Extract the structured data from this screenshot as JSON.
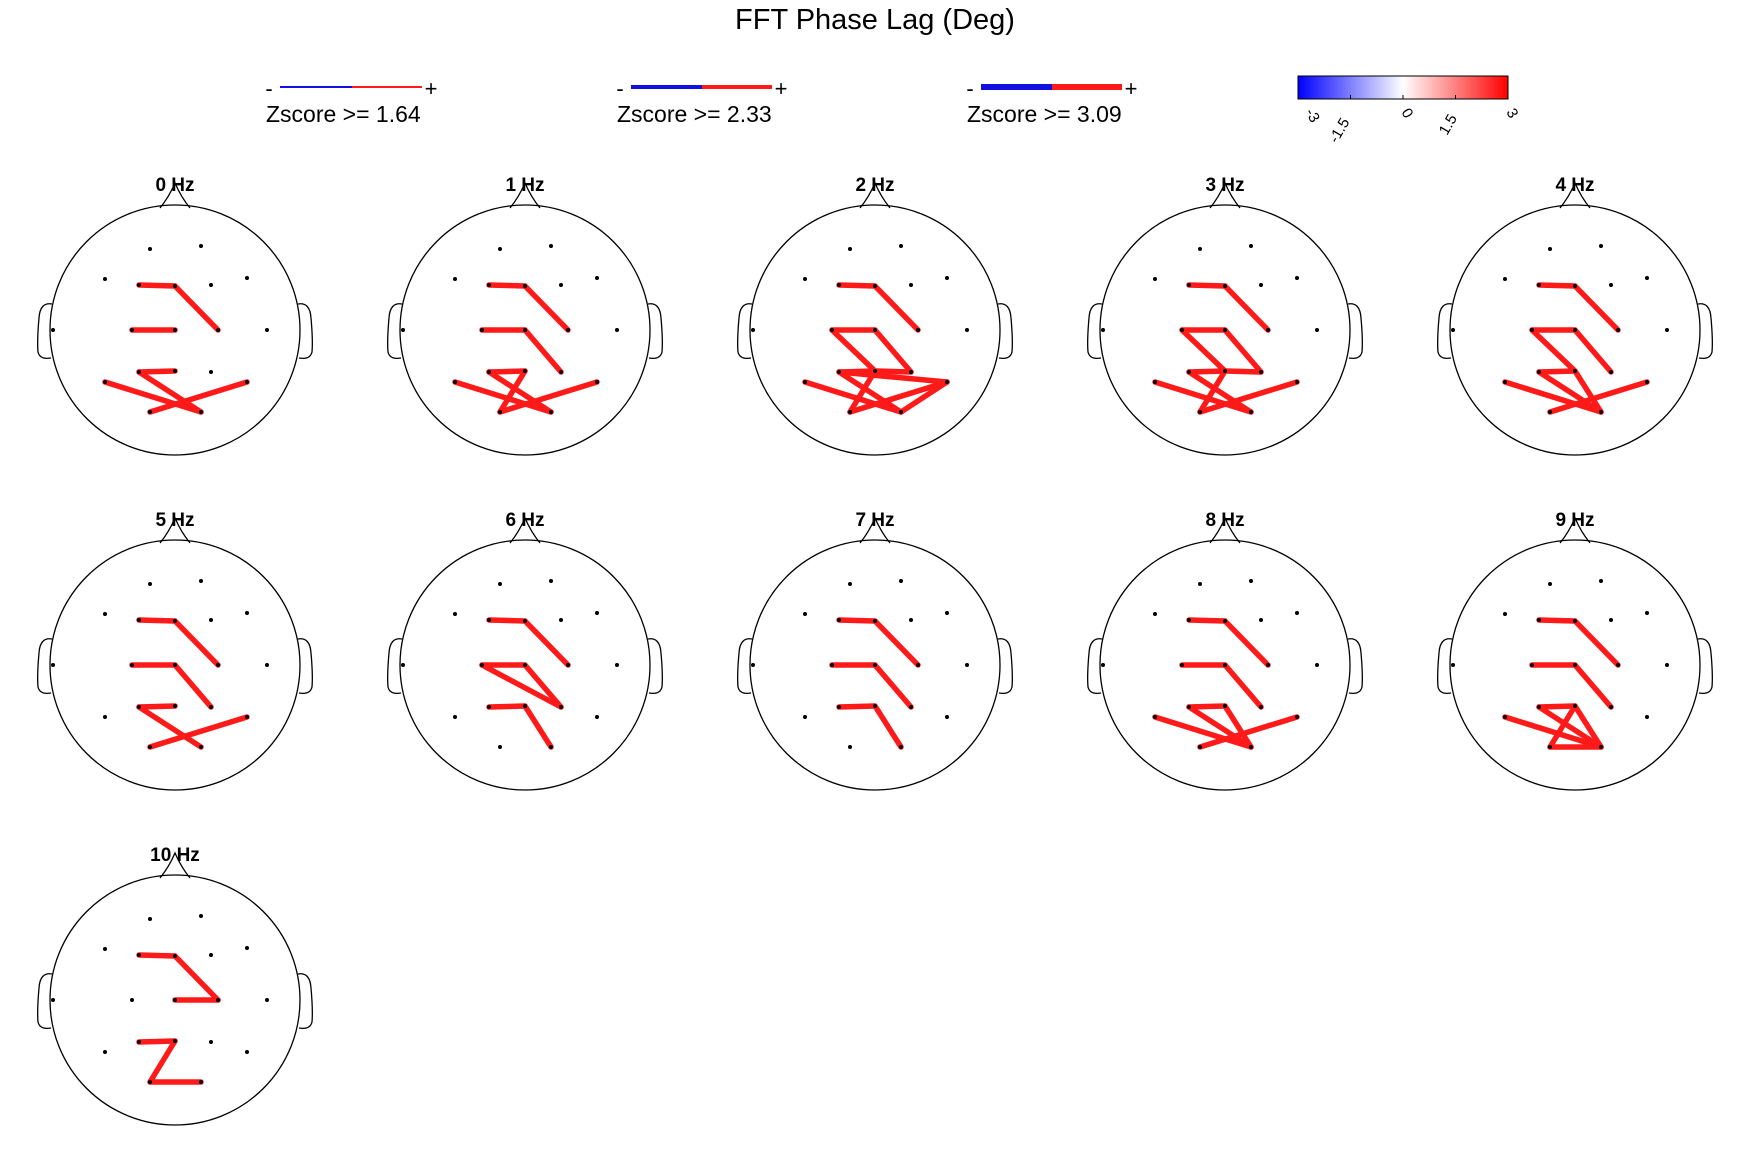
{
  "title": "FFT Phase Lag (Deg)",
  "colors": {
    "positive": "#ff1a1a",
    "negative": "#1010e0",
    "outline": "#000000"
  },
  "line_legend": [
    {
      "label": "Zscore >= 1.64",
      "minus": "-",
      "plus": "+",
      "weight": "thin"
    },
    {
      "label": "Zscore >= 2.33",
      "minus": "-",
      "plus": "+",
      "weight": "medium"
    },
    {
      "label": "Zscore >= 3.09",
      "minus": "-",
      "plus": "+",
      "weight": "thick"
    }
  ],
  "colorbar": {
    "min": -3,
    "max": 3,
    "ticks": [
      "-3",
      "-1.5",
      "0",
      "1.5",
      "3"
    ],
    "colormap": [
      "#0000ff",
      "#ffffff",
      "#ff0000"
    ]
  },
  "electrodes": [
    "Fp1",
    "Fp2",
    "F7",
    "F3",
    "Fz",
    "F4",
    "F8",
    "T3",
    "C3",
    "Cz",
    "C4",
    "T4",
    "T5",
    "P3",
    "Pz",
    "P4",
    "T6",
    "O1",
    "O2"
  ],
  "heads": [
    {
      "label": "0 Hz",
      "links": [
        [
          "F3",
          "Fz"
        ],
        [
          "Fz",
          "C4"
        ],
        [
          "C3",
          "Cz"
        ],
        [
          "P3",
          "Pz"
        ],
        [
          "T5",
          "O2"
        ],
        [
          "P3",
          "O2"
        ],
        [
          "O1",
          "T6"
        ]
      ]
    },
    {
      "label": "1 Hz",
      "links": [
        [
          "F3",
          "Fz"
        ],
        [
          "Fz",
          "C4"
        ],
        [
          "C3",
          "Cz"
        ],
        [
          "Cz",
          "P4"
        ],
        [
          "P3",
          "Pz"
        ],
        [
          "T5",
          "O2"
        ],
        [
          "P3",
          "O2"
        ],
        [
          "Pz",
          "O1"
        ],
        [
          "O1",
          "T6"
        ]
      ]
    },
    {
      "label": "2 Hz",
      "links": [
        [
          "F3",
          "Fz"
        ],
        [
          "Fz",
          "C4"
        ],
        [
          "C3",
          "Cz"
        ],
        [
          "Cz",
          "P4"
        ],
        [
          "C3",
          "Pz"
        ],
        [
          "P3",
          "Pz"
        ],
        [
          "Pz",
          "P4"
        ],
        [
          "T5",
          "O2"
        ],
        [
          "P3",
          "O2"
        ],
        [
          "Pz",
          "O1"
        ],
        [
          "O1",
          "T6"
        ],
        [
          "O2",
          "T6"
        ],
        [
          "P3",
          "T6"
        ]
      ]
    },
    {
      "label": "3 Hz",
      "links": [
        [
          "F3",
          "Fz"
        ],
        [
          "Fz",
          "C4"
        ],
        [
          "C3",
          "Cz"
        ],
        [
          "Cz",
          "P4"
        ],
        [
          "C3",
          "Pz"
        ],
        [
          "P3",
          "Pz"
        ],
        [
          "Pz",
          "P4"
        ],
        [
          "T5",
          "O2"
        ],
        [
          "P3",
          "O2"
        ],
        [
          "Pz",
          "O1"
        ],
        [
          "O1",
          "T6"
        ]
      ]
    },
    {
      "label": "4 Hz",
      "links": [
        [
          "F3",
          "Fz"
        ],
        [
          "Fz",
          "C4"
        ],
        [
          "C3",
          "Cz"
        ],
        [
          "Cz",
          "P4"
        ],
        [
          "C3",
          "Pz"
        ],
        [
          "P3",
          "Pz"
        ],
        [
          "Pz",
          "O2"
        ],
        [
          "T5",
          "O2"
        ],
        [
          "P3",
          "O2"
        ],
        [
          "O1",
          "T6"
        ]
      ]
    },
    {
      "label": "5 Hz",
      "links": [
        [
          "F3",
          "Fz"
        ],
        [
          "Fz",
          "C4"
        ],
        [
          "C3",
          "Cz"
        ],
        [
          "Cz",
          "P4"
        ],
        [
          "P3",
          "Pz"
        ],
        [
          "P3",
          "O2"
        ],
        [
          "O1",
          "T6"
        ]
      ]
    },
    {
      "label": "6 Hz",
      "links": [
        [
          "F3",
          "Fz"
        ],
        [
          "Fz",
          "C4"
        ],
        [
          "C3",
          "Cz"
        ],
        [
          "Cz",
          "P4"
        ],
        [
          "C3",
          "P4"
        ],
        [
          "P3",
          "Pz"
        ],
        [
          "Pz",
          "O2"
        ]
      ]
    },
    {
      "label": "7 Hz",
      "links": [
        [
          "F3",
          "Fz"
        ],
        [
          "Fz",
          "C4"
        ],
        [
          "C3",
          "Cz"
        ],
        [
          "Cz",
          "P4"
        ],
        [
          "P3",
          "Pz"
        ],
        [
          "Pz",
          "O2"
        ]
      ]
    },
    {
      "label": "8 Hz",
      "links": [
        [
          "F3",
          "Fz"
        ],
        [
          "Fz",
          "C4"
        ],
        [
          "C3",
          "Cz"
        ],
        [
          "Cz",
          "P4"
        ],
        [
          "P3",
          "Pz"
        ],
        [
          "T5",
          "O2"
        ],
        [
          "P3",
          "O2"
        ],
        [
          "Pz",
          "O2"
        ],
        [
          "O1",
          "T6"
        ]
      ]
    },
    {
      "label": "9 Hz",
      "links": [
        [
          "F3",
          "Fz"
        ],
        [
          "Fz",
          "C4"
        ],
        [
          "C3",
          "Cz"
        ],
        [
          "Cz",
          "P4"
        ],
        [
          "P3",
          "Pz"
        ],
        [
          "Pz",
          "O1"
        ],
        [
          "Pz",
          "O2"
        ],
        [
          "O1",
          "O2"
        ],
        [
          "T5",
          "O2"
        ],
        [
          "P3",
          "O2"
        ]
      ]
    },
    {
      "label": "10 Hz",
      "links": [
        [
          "F3",
          "Fz"
        ],
        [
          "Fz",
          "C4"
        ],
        [
          "Cz",
          "C4"
        ],
        [
          "P3",
          "Pz"
        ],
        [
          "Pz",
          "O1"
        ],
        [
          "O1",
          "O2"
        ]
      ]
    }
  ]
}
